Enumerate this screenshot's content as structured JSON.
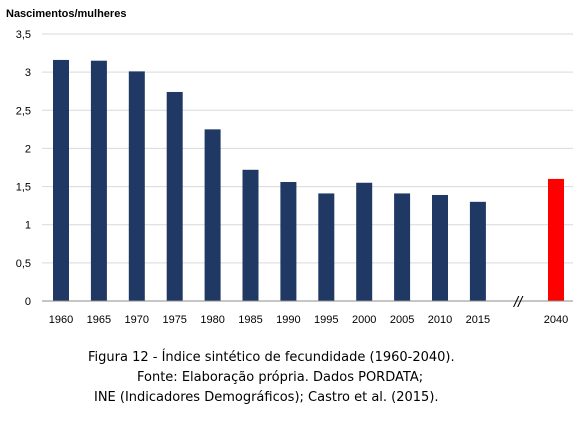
{
  "chart_data": {
    "type": "bar",
    "title": "",
    "ylabel": "Nascimentos/mulheres",
    "xlabel": "",
    "categories": [
      "1960",
      "1965",
      "1970",
      "1975",
      "1980",
      "1985",
      "1990",
      "1995",
      "2000",
      "2005",
      "2010",
      "2015",
      "2040"
    ],
    "values": [
      3.16,
      3.15,
      3.01,
      2.74,
      2.25,
      1.72,
      1.56,
      1.41,
      1.55,
      1.41,
      1.39,
      1.3,
      1.6
    ],
    "ylim": [
      0,
      3.5
    ],
    "yticks": [
      "0",
      "0,5",
      "1",
      "1,5",
      "2",
      "2,5",
      "3",
      "3,5"
    ],
    "grid": true,
    "axis_break_label": "//",
    "colors": {
      "historical": "#1f3864",
      "projection": "#ff0000",
      "grid": "#d9d9d9",
      "axis": "#8c8c8c"
    }
  },
  "caption": {
    "line1": "Figura 12 - Índice sintético de fecundidade (1960-2040).",
    "line2": "Fonte: Elaboração própria. Dados PORDATA;",
    "line3": "INE (Indicadores Demográficos); Castro et al. (2015)."
  }
}
